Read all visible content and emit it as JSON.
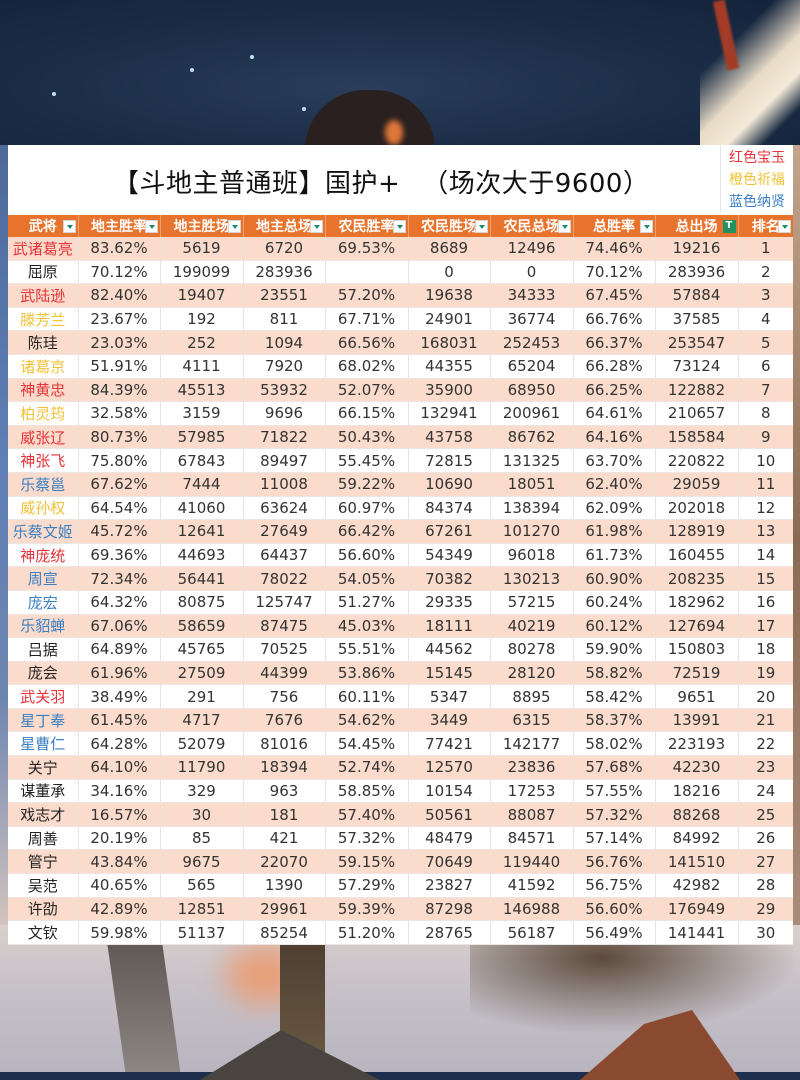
{
  "title": {
    "main": "【斗地主普通班】国护+",
    "sub": "（场次大于9600）"
  },
  "legend": [
    {
      "label": "红色宝玉",
      "color": "#e8333a"
    },
    {
      "label": "橙色祈福",
      "color": "#f0c23a"
    },
    {
      "label": "蓝色纳贤",
      "color": "#3a7fc4"
    }
  ],
  "colors": {
    "header_bg": "#e8732c",
    "row_odd": "#fbdccc",
    "row_even": "#ffffff",
    "red": "#e8333a",
    "orange": "#f0c23a",
    "blue": "#3a7fc4",
    "default": "#222222"
  },
  "columns": [
    "武将",
    "地主胜率",
    "地主胜场",
    "地主总场",
    "农民胜率",
    "农民胜场",
    "农民总场",
    "总胜率",
    "总出场",
    "排名"
  ],
  "active_filter_column": "总出场",
  "rows": [
    {
      "name": "武诸葛亮",
      "color": "red",
      "vals": [
        "83.62%",
        "5619",
        "6720",
        "69.53%",
        "8689",
        "12496",
        "74.46%",
        "19216",
        "1"
      ]
    },
    {
      "name": "屈原",
      "color": "default",
      "vals": [
        "70.12%",
        "199099",
        "283936",
        "",
        "0",
        "0",
        "70.12%",
        "283936",
        "2"
      ]
    },
    {
      "name": "武陆逊",
      "color": "red",
      "vals": [
        "82.40%",
        "19407",
        "23551",
        "57.20%",
        "19638",
        "34333",
        "67.45%",
        "57884",
        "3"
      ]
    },
    {
      "name": "滕芳兰",
      "color": "orange",
      "vals": [
        "23.67%",
        "192",
        "811",
        "67.71%",
        "24901",
        "36774",
        "66.76%",
        "37585",
        "4"
      ]
    },
    {
      "name": "陈珪",
      "color": "default",
      "vals": [
        "23.03%",
        "252",
        "1094",
        "66.56%",
        "168031",
        "252453",
        "66.37%",
        "253547",
        "5"
      ]
    },
    {
      "name": "诸葛京",
      "color": "orange",
      "vals": [
        "51.91%",
        "4111",
        "7920",
        "68.02%",
        "44355",
        "65204",
        "66.28%",
        "73124",
        "6"
      ]
    },
    {
      "name": "神黄忠",
      "color": "red",
      "vals": [
        "84.39%",
        "45513",
        "53932",
        "52.07%",
        "35900",
        "68950",
        "66.25%",
        "122882",
        "7"
      ]
    },
    {
      "name": "柏灵筠",
      "color": "orange",
      "vals": [
        "32.58%",
        "3159",
        "9696",
        "66.15%",
        "132941",
        "200961",
        "64.61%",
        "210657",
        "8"
      ]
    },
    {
      "name": "威张辽",
      "color": "red",
      "vals": [
        "80.73%",
        "57985",
        "71822",
        "50.43%",
        "43758",
        "86762",
        "64.16%",
        "158584",
        "9"
      ]
    },
    {
      "name": "神张飞",
      "color": "red",
      "vals": [
        "75.80%",
        "67843",
        "89497",
        "55.45%",
        "72815",
        "131325",
        "63.70%",
        "220822",
        "10"
      ]
    },
    {
      "name": "乐蔡邕",
      "color": "blue",
      "vals": [
        "67.62%",
        "7444",
        "11008",
        "59.22%",
        "10690",
        "18051",
        "62.40%",
        "29059",
        "11"
      ]
    },
    {
      "name": "威孙权",
      "color": "orange",
      "vals": [
        "64.54%",
        "41060",
        "63624",
        "60.97%",
        "84374",
        "138394",
        "62.09%",
        "202018",
        "12"
      ]
    },
    {
      "name": "乐蔡文姬",
      "color": "blue",
      "vals": [
        "45.72%",
        "12641",
        "27649",
        "66.42%",
        "67261",
        "101270",
        "61.98%",
        "128919",
        "13"
      ]
    },
    {
      "name": "神庞统",
      "color": "red",
      "vals": [
        "69.36%",
        "44693",
        "64437",
        "56.60%",
        "54349",
        "96018",
        "61.73%",
        "160455",
        "14"
      ]
    },
    {
      "name": "周宣",
      "color": "blue",
      "vals": [
        "72.34%",
        "56441",
        "78022",
        "54.05%",
        "70382",
        "130213",
        "60.90%",
        "208235",
        "15"
      ]
    },
    {
      "name": "庞宏",
      "color": "blue",
      "vals": [
        "64.32%",
        "80875",
        "125747",
        "51.27%",
        "29335",
        "57215",
        "60.24%",
        "182962",
        "16"
      ]
    },
    {
      "name": "乐貂蝉",
      "color": "blue",
      "vals": [
        "67.06%",
        "58659",
        "87475",
        "45.03%",
        "18111",
        "40219",
        "60.12%",
        "127694",
        "17"
      ]
    },
    {
      "name": "吕据",
      "color": "default",
      "vals": [
        "64.89%",
        "45765",
        "70525",
        "55.51%",
        "44562",
        "80278",
        "59.90%",
        "150803",
        "18"
      ]
    },
    {
      "name": "庞会",
      "color": "default",
      "vals": [
        "61.96%",
        "27509",
        "44399",
        "53.86%",
        "15145",
        "28120",
        "58.82%",
        "72519",
        "19"
      ]
    },
    {
      "name": "武关羽",
      "color": "red",
      "vals": [
        "38.49%",
        "291",
        "756",
        "60.11%",
        "5347",
        "8895",
        "58.42%",
        "9651",
        "20"
      ]
    },
    {
      "name": "星丁奉",
      "color": "blue",
      "vals": [
        "61.45%",
        "4717",
        "7676",
        "54.62%",
        "3449",
        "6315",
        "58.37%",
        "13991",
        "21"
      ]
    },
    {
      "name": "星曹仁",
      "color": "blue",
      "vals": [
        "64.28%",
        "52079",
        "81016",
        "54.45%",
        "77421",
        "142177",
        "58.02%",
        "223193",
        "22"
      ]
    },
    {
      "name": "关宁",
      "color": "default",
      "vals": [
        "64.10%",
        "11790",
        "18394",
        "52.74%",
        "12570",
        "23836",
        "57.68%",
        "42230",
        "23"
      ]
    },
    {
      "name": "谋董承",
      "color": "default",
      "vals": [
        "34.16%",
        "329",
        "963",
        "58.85%",
        "10154",
        "17253",
        "57.55%",
        "18216",
        "24"
      ]
    },
    {
      "name": "戏志才",
      "color": "default",
      "vals": [
        "16.57%",
        "30",
        "181",
        "57.40%",
        "50561",
        "88087",
        "57.32%",
        "88268",
        "25"
      ]
    },
    {
      "name": "周善",
      "color": "default",
      "vals": [
        "20.19%",
        "85",
        "421",
        "57.32%",
        "48479",
        "84571",
        "57.14%",
        "84992",
        "26"
      ]
    },
    {
      "name": "管宁",
      "color": "default",
      "vals": [
        "43.84%",
        "9675",
        "22070",
        "59.15%",
        "70649",
        "119440",
        "56.76%",
        "141510",
        "27"
      ]
    },
    {
      "name": "吴范",
      "color": "default",
      "vals": [
        "40.65%",
        "565",
        "1390",
        "57.29%",
        "23827",
        "41592",
        "56.75%",
        "42982",
        "28"
      ]
    },
    {
      "name": "许劭",
      "color": "default",
      "vals": [
        "42.89%",
        "12851",
        "29961",
        "59.39%",
        "87298",
        "146988",
        "56.60%",
        "176949",
        "29"
      ]
    },
    {
      "name": "文钦",
      "color": "default",
      "vals": [
        "59.98%",
        "51137",
        "85254",
        "51.20%",
        "28765",
        "56187",
        "56.49%",
        "141441",
        "30"
      ]
    }
  ]
}
